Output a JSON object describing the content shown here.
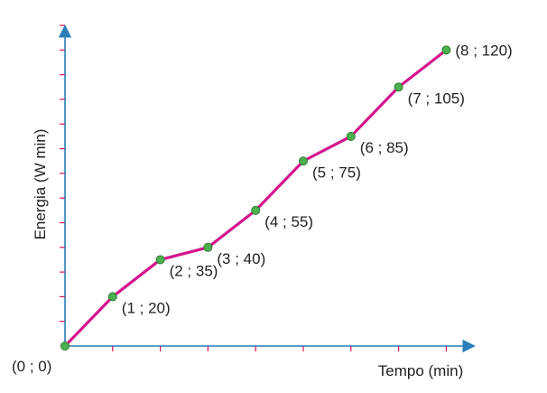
{
  "chart_data": {
    "type": "line",
    "xlabel": "Tempo (min)",
    "ylabel": "Energia (W min)",
    "xlim": [
      0,
      8
    ],
    "ylim": [
      0,
      130
    ],
    "grid": false,
    "series": [
      {
        "x": [
          0,
          1,
          2,
          3,
          4,
          5,
          6,
          7,
          8
        ],
        "y": [
          0,
          20,
          35,
          40,
          55,
          75,
          85,
          105,
          120
        ],
        "point_labels": [
          "(0 ; 0)",
          "(1 ; 20)",
          "(2 ; 35)",
          "(3 ; 40)",
          "(4 ; 55)",
          "(5 ; 75)",
          "(6 ; 85)",
          "(7 ; 105)",
          "(8 ; 120)"
        ]
      }
    ],
    "colors": {
      "axis": "#2a7fb8",
      "ticks": "#d4145a",
      "line": "#d4148c",
      "points": "#4caf50"
    }
  }
}
